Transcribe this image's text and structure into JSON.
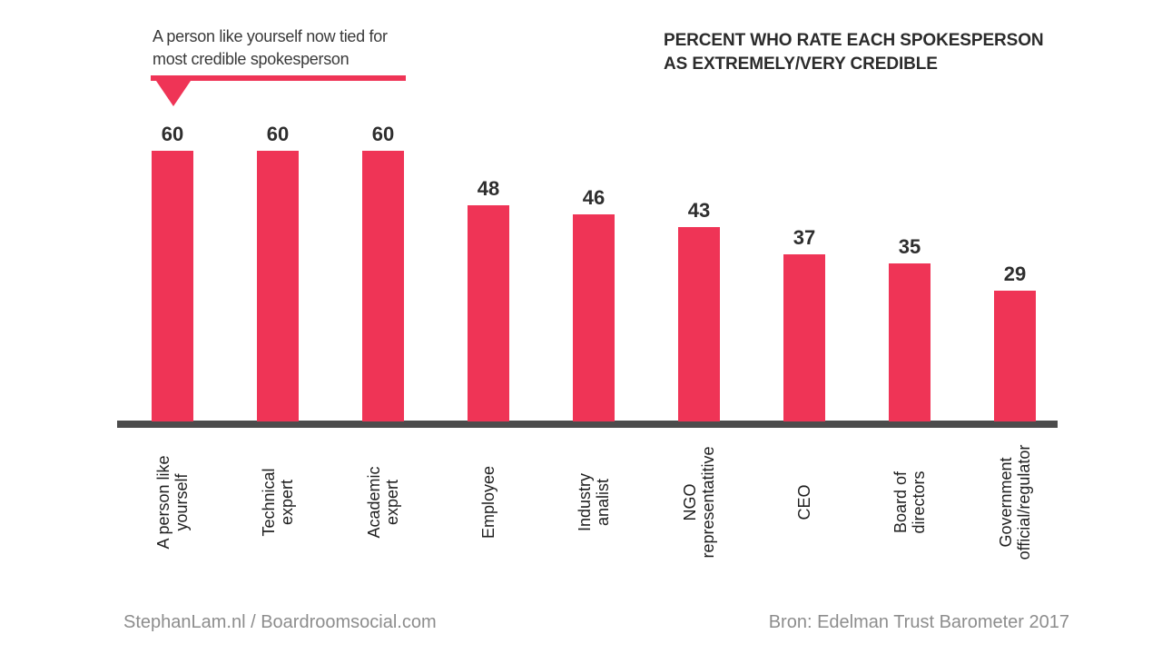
{
  "header": {
    "annotation": {
      "line1": "A person like yourself now tied for",
      "line2": "most credible spokesperson"
    },
    "title": {
      "line1": "PERCENT WHO RATE EACH SPOKESPERSON",
      "line2": "AS EXTREMELY/VERY  CREDIBLE"
    }
  },
  "footer": {
    "left": "StephanLam.nl / Boardroomsocial.com",
    "right": "Bron: Edelman Trust Barometer 2017"
  },
  "colors": {
    "bar": "#ef3456",
    "accent": "#ef3456",
    "axis": "#4c4c4c",
    "title_text": "#2b2b2b",
    "category_text": "#1f1f1f",
    "footer_text": "#8d8d8d"
  },
  "chart_data": {
    "type": "bar",
    "title": "PERCENT WHO RATE EACH SPOKESPERSON AS EXTREMELY/VERY CREDIBLE",
    "annotation": "A person like yourself now tied for most credible spokesperson",
    "categories": [
      "A person like yourself",
      "Technical expert",
      "Academic expert",
      "Employee",
      "Industry analist",
      "NGO representatitive",
      "CEO",
      "Board of directors",
      "Government official/regulator"
    ],
    "categories_display": [
      "A person like\nyourself",
      "Technical\nexpert",
      "Academic\nexpert",
      "Employee",
      "Industry\nanalist",
      "NGO\nrepresentatitive",
      "CEO",
      "Board of\ndirectors",
      "Government\nofficial/regulator"
    ],
    "values": [
      60,
      60,
      60,
      48,
      46,
      43,
      37,
      35,
      29
    ],
    "data_labels": true,
    "unit": "percent",
    "xlabel": "",
    "ylabel": "",
    "ylim": [
      0,
      65
    ],
    "grid": false,
    "legend": false,
    "bar_color": "#ef3456",
    "source": "Bron: Edelman Trust Barometer 2017"
  }
}
